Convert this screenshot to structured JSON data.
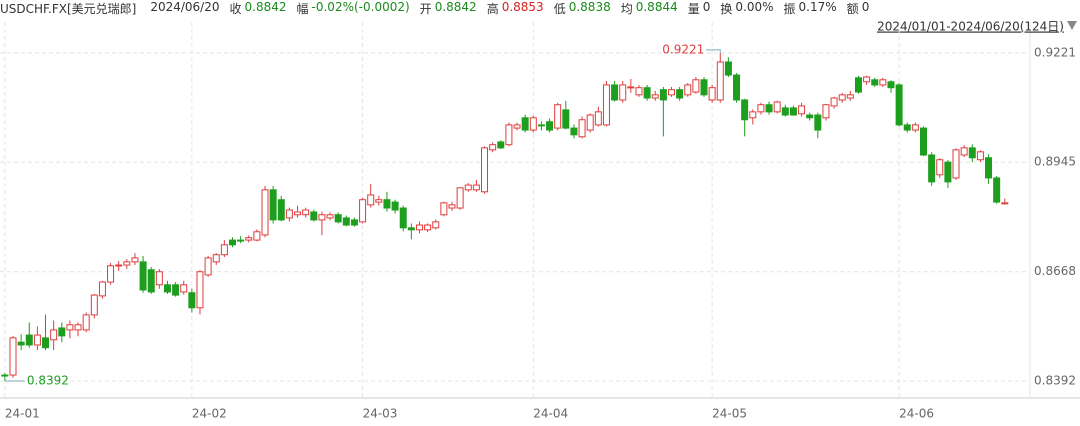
{
  "header": {
    "symbol": "USDCHF.FX[美元兑瑞郎]",
    "date": "2024/06/20",
    "items": [
      {
        "label": "收",
        "value": "0.8842",
        "color": "#1a8a1a"
      },
      {
        "label": "幅",
        "value": "-0.02%(-0.0002)",
        "color": "#1a8a1a"
      },
      {
        "label": "开",
        "value": "0.8842",
        "color": "#1a8a1a"
      },
      {
        "label": "高",
        "value": "0.8853",
        "color": "#d42020"
      },
      {
        "label": "低",
        "value": "0.8838",
        "color": "#1a8a1a"
      },
      {
        "label": "均",
        "value": "0.8844",
        "color": "#1a8a1a"
      },
      {
        "label": "量",
        "value": "0",
        "color": "#333333"
      },
      {
        "label": "换",
        "value": "0.00%",
        "color": "#333333"
      },
      {
        "label": "振",
        "value": "0.17%",
        "color": "#333333"
      },
      {
        "label": "额",
        "value": "0",
        "color": "#333333"
      }
    ],
    "range": "2024/01/01-2024/06/20(124日)"
  },
  "chart_data": {
    "type": "candlestick",
    "up_color": "#e03c3c",
    "down_color": "#1e9e1e",
    "max_label": "0.9221",
    "min_label": "0.8392",
    "xlim": [
      -0.6,
      126.1
    ],
    "ylim": [
      0.8349,
      0.9299
    ],
    "yticks": [
      0.9221,
      0.8945,
      0.8668,
      0.8392
    ],
    "xticks": [
      {
        "value": 0,
        "label": "24-01"
      },
      {
        "value": 23,
        "label": "24-02"
      },
      {
        "value": 44,
        "label": "24-03"
      },
      {
        "value": 65,
        "label": "24-04"
      },
      {
        "value": 87,
        "label": "24-05"
      },
      {
        "value": 110,
        "label": "24-06"
      }
    ],
    "grid": true,
    "open": [
      0.8407,
      0.8407,
      0.849,
      0.8508,
      0.8483,
      0.8501,
      0.8496,
      0.8526,
      0.8521,
      0.8521,
      0.8521,
      0.8559,
      0.8607,
      0.8642,
      0.8683,
      0.8685,
      0.8693,
      0.8693,
      0.8673,
      0.8635,
      0.8635,
      0.8635,
      0.8617,
      0.8615,
      0.8577,
      0.866,
      0.8693,
      0.8711,
      0.8748,
      0.8748,
      0.8748,
      0.8748,
      0.8761,
      0.8875,
      0.885,
      0.8804,
      0.8812,
      0.8812,
      0.8819,
      0.8799,
      0.8804,
      0.8812,
      0.8804,
      0.8799,
      0.8794,
      0.8837,
      0.8844,
      0.885,
      0.8844,
      0.8829,
      0.8779,
      0.8774,
      0.8774,
      0.8779,
      0.8812,
      0.8829,
      0.8829,
      0.8875,
      0.8875,
      0.887,
      0.8976,
      0.8996,
      0.8989,
      0.9031,
      0.9057,
      0.9026,
      0.9039,
      0.9047,
      0.9031,
      0.9077,
      0.9031,
      0.9009,
      0.9026,
      0.9039,
      0.9039,
      0.914,
      0.9102,
      0.9133,
      0.9115,
      0.9133,
      0.9107,
      0.9128,
      0.9115,
      0.9128,
      0.9115,
      0.9122,
      0.9153,
      0.9102,
      0.9102,
      0.9198,
      0.9165,
      0.9102,
      0.9057,
      0.9072,
      0.909,
      0.9072,
      0.9082,
      0.9082,
      0.9067,
      0.9064,
      0.9064,
      0.9057,
      0.9087,
      0.9102,
      0.9107,
      0.9158,
      0.9148,
      0.9153,
      0.914,
      0.9148,
      0.914,
      0.9039,
      0.9026,
      0.9031,
      0.8963,
      0.8913,
      0.8945,
      0.8905,
      0.8963,
      0.8981,
      0.8951,
      0.8956,
      0.8905,
      0.8842
    ],
    "high": [
      0.8412,
      0.8506,
      0.851,
      0.854,
      0.853,
      0.856,
      0.8545,
      0.854,
      0.8545,
      0.854,
      0.8565,
      0.8612,
      0.8645,
      0.869,
      0.8695,
      0.87,
      0.8715,
      0.8708,
      0.868,
      0.8675,
      0.8645,
      0.8642,
      0.8645,
      0.8625,
      0.8672,
      0.8708,
      0.8715,
      0.8748,
      0.8755,
      0.8758,
      0.876,
      0.8775,
      0.8885,
      0.8885,
      0.886,
      0.883,
      0.8835,
      0.883,
      0.8825,
      0.882,
      0.8818,
      0.8818,
      0.881,
      0.8805,
      0.8855,
      0.889,
      0.886,
      0.887,
      0.885,
      0.8835,
      0.879,
      0.8795,
      0.879,
      0.88,
      0.8845,
      0.8845,
      0.8882,
      0.8892,
      0.89,
      0.8985,
      0.8995,
      0.9,
      0.9045,
      0.9045,
      0.9065,
      0.9062,
      0.9048,
      0.9055,
      0.9095,
      0.91,
      0.904,
      0.906,
      0.9068,
      0.9085,
      0.915,
      0.915,
      0.915,
      0.9155,
      0.914,
      0.914,
      0.9125,
      0.9135,
      0.9135,
      0.9135,
      0.9145,
      0.916,
      0.916,
      0.914,
      0.9221,
      0.921,
      0.917,
      0.9105,
      0.9078,
      0.9095,
      0.9098,
      0.91,
      0.909,
      0.9088,
      0.9095,
      0.907,
      0.907,
      0.9092,
      0.911,
      0.912,
      0.9125,
      0.9163,
      0.9163,
      0.9158,
      0.9158,
      0.9152,
      0.9145,
      0.9045,
      0.9045,
      0.9035,
      0.897,
      0.8955,
      0.895,
      0.898,
      0.8988,
      0.899,
      0.8975,
      0.8965,
      0.891,
      0.8853
    ],
    "low": [
      0.8392,
      0.84,
      0.847,
      0.8476,
      0.847,
      0.847,
      0.847,
      0.849,
      0.85,
      0.8505,
      0.8515,
      0.855,
      0.86,
      0.8635,
      0.867,
      0.8675,
      0.8685,
      0.8615,
      0.8612,
      0.8625,
      0.8612,
      0.8605,
      0.861,
      0.8565,
      0.856,
      0.8655,
      0.8685,
      0.8705,
      0.873,
      0.874,
      0.8742,
      0.8745,
      0.8755,
      0.879,
      0.8795,
      0.8795,
      0.8805,
      0.8805,
      0.8795,
      0.876,
      0.8798,
      0.879,
      0.8783,
      0.8782,
      0.879,
      0.883,
      0.8835,
      0.882,
      0.8815,
      0.877,
      0.875,
      0.8765,
      0.8768,
      0.8775,
      0.8808,
      0.8822,
      0.8825,
      0.887,
      0.887,
      0.8865,
      0.897,
      0.8978,
      0.8985,
      0.9025,
      0.902,
      0.902,
      0.9025,
      0.902,
      0.9025,
      0.9028,
      0.9005,
      0.9005,
      0.902,
      0.9035,
      0.9035,
      0.9098,
      0.9095,
      0.912,
      0.911,
      0.91,
      0.91,
      0.901,
      0.911,
      0.91,
      0.911,
      0.9118,
      0.911,
      0.9095,
      0.9095,
      0.916,
      0.9095,
      0.901,
      0.904,
      0.9065,
      0.9065,
      0.9068,
      0.906,
      0.9062,
      0.906,
      0.905,
      0.9005,
      0.905,
      0.908,
      0.9095,
      0.91,
      0.9118,
      0.914,
      0.9135,
      0.9135,
      0.912,
      0.9035,
      0.902,
      0.902,
      0.896,
      0.8885,
      0.8905,
      0.888,
      0.89,
      0.8958,
      0.8945,
      0.8945,
      0.889,
      0.884,
      0.8838
    ],
    "close": [
      0.8405,
      0.8501,
      0.8483,
      0.8483,
      0.8508,
      0.8476,
      0.8521,
      0.8506,
      0.8534,
      0.8534,
      0.8559,
      0.8609,
      0.8642,
      0.8683,
      0.8685,
      0.8693,
      0.8703,
      0.8622,
      0.8617,
      0.8668,
      0.8617,
      0.8609,
      0.8635,
      0.8577,
      0.8668,
      0.8703,
      0.8711,
      0.8736,
      0.8736,
      0.8746,
      0.8754,
      0.8769,
      0.8875,
      0.8799,
      0.8799,
      0.8824,
      0.8819,
      0.8824,
      0.8799,
      0.8812,
      0.8812,
      0.8794,
      0.8786,
      0.8786,
      0.885,
      0.8862,
      0.885,
      0.8829,
      0.8824,
      0.8779,
      0.8774,
      0.8786,
      0.8786,
      0.8794,
      0.8842,
      0.8837,
      0.888,
      0.8887,
      0.8887,
      0.8981,
      0.8989,
      0.8981,
      0.9039,
      0.9039,
      0.9026,
      0.9057,
      0.9037,
      0.9026,
      0.909,
      0.9031,
      0.9014,
      0.9052,
      0.9064,
      0.9072,
      0.914,
      0.9102,
      0.914,
      0.9135,
      0.9133,
      0.9107,
      0.9115,
      0.9102,
      0.9128,
      0.9107,
      0.914,
      0.9153,
      0.9115,
      0.9133,
      0.9198,
      0.9165,
      0.9102,
      0.9052,
      0.9072,
      0.909,
      0.9072,
      0.9097,
      0.9064,
      0.9064,
      0.9087,
      0.9057,
      0.9026,
      0.909,
      0.9107,
      0.9115,
      0.9115,
      0.9122,
      0.916,
      0.914,
      0.9153,
      0.9133,
      0.9039,
      0.9026,
      0.9039,
      0.8963,
      0.8895,
      0.8951,
      0.8895,
      0.8976,
      0.8981,
      0.8956,
      0.8971,
      0.8905,
      0.8844,
      0.8842
    ]
  }
}
